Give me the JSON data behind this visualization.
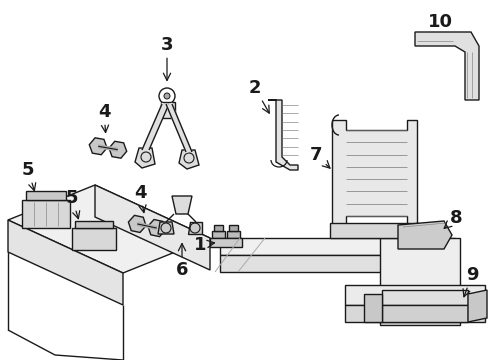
{
  "bg_color": "#ffffff",
  "line_color": "#1a1a1a",
  "figsize": [
    4.9,
    3.6
  ],
  "dpi": 100,
  "label_fontsize": 13,
  "labels": {
    "1": [
      0.41,
      0.498,
      0.44,
      0.498
    ],
    "2": [
      0.518,
      0.095,
      0.548,
      0.14
    ],
    "3": [
      0.348,
      0.055,
      0.348,
      0.175
    ],
    "4a": [
      0.215,
      0.225,
      0.218,
      0.31
    ],
    "4b": [
      0.288,
      0.56,
      0.295,
      0.615
    ],
    "5a": [
      0.055,
      0.39,
      0.068,
      0.47
    ],
    "5b": [
      0.148,
      0.595,
      0.168,
      0.64
    ],
    "6": [
      0.305,
      0.73,
      0.305,
      0.66
    ],
    "7": [
      0.625,
      0.31,
      0.65,
      0.38
    ],
    "8": [
      0.84,
      0.52,
      0.82,
      0.54
    ],
    "9": [
      0.875,
      0.76,
      0.85,
      0.73
    ],
    "10": [
      0.853,
      0.052,
      0.853,
      0.052
    ]
  }
}
